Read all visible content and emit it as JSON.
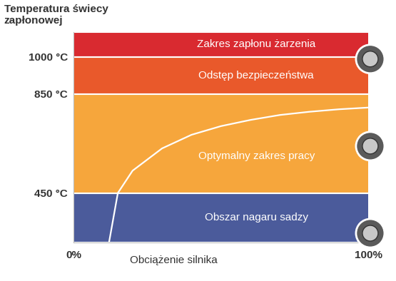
{
  "chart_data": {
    "type": "line",
    "y_label": "Temperatura świecy\nzapłonowej",
    "x_label": "Obciążenie silnika",
    "x": [
      12,
      13.5,
      15,
      20,
      30,
      40,
      50,
      60,
      70,
      80,
      90,
      100
    ],
    "values": [
      250,
      350,
      450,
      540,
      630,
      685,
      720,
      745,
      765,
      778,
      788,
      795
    ],
    "color": "#ffffff",
    "bands": [
      {
        "name": "Obszar nagaru sadzy",
        "values": [
          250,
          450
        ],
        "color": "#4b5b9b"
      },
      {
        "name": "Optymalny zakres pracy",
        "values": [
          450,
          850
        ],
        "color": "#f6a63c"
      },
      {
        "name": "Odstęp bezpieczeństwa",
        "values": [
          850,
          1000
        ],
        "color": "#e9592b"
      },
      {
        "name": "Zakres zapłonu żarzenia",
        "values": [
          1000,
          1100
        ],
        "color": "#d92a30"
      }
    ],
    "xlim": [
      0,
      100
    ],
    "xticks": [
      {
        "value": 0,
        "label": "0%"
      },
      {
        "value": 100,
        "label": "100%"
      }
    ],
    "ylim": [
      250,
      1100
    ],
    "yticks": [
      {
        "value": 450,
        "label": "450 °C"
      },
      {
        "value": 850,
        "label": "850 °C"
      },
      {
        "value": 1000,
        "label": "1000 °C"
      }
    ],
    "grid": false
  }
}
